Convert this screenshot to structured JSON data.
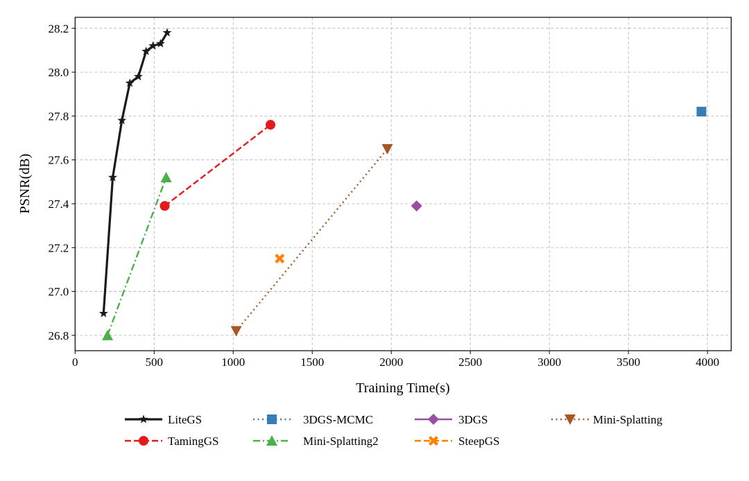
{
  "chart_data": {
    "type": "line",
    "title": "",
    "xlabel": "Training Time(s)",
    "ylabel": "PSNR(dB)",
    "xlim": [
      0,
      4150
    ],
    "ylim": [
      26.73,
      28.25
    ],
    "xticks": [
      0,
      500,
      1000,
      1500,
      2000,
      2500,
      3000,
      3500,
      4000
    ],
    "yticks": [
      26.8,
      27.0,
      27.2,
      27.4,
      27.6,
      27.8,
      28.0,
      28.2
    ],
    "grid": true,
    "legend_position": "bottom",
    "series": [
      {
        "name": "LiteGS",
        "color": "#1a1a1a",
        "line": "solid",
        "marker": "star",
        "x": [
          180,
          238,
          296,
          346,
          400,
          449,
          493,
          540,
          582
        ],
        "y": [
          26.9,
          27.52,
          27.78,
          27.95,
          27.98,
          28.095,
          28.12,
          28.13,
          28.18
        ]
      },
      {
        "name": "TamingGS",
        "color": "#e41a1c",
        "line": "dashed",
        "marker": "circle",
        "x": [
          567,
          1236
        ],
        "y": [
          27.39,
          27.76
        ]
      },
      {
        "name": "3DGS-MCMC",
        "color": "#377eb8",
        "line": "dotted",
        "marker": "square",
        "x": [
          3962
        ],
        "y": [
          27.82
        ]
      },
      {
        "name": "Mini-Splatting2",
        "color": "#4daf4a",
        "line": "dashdot",
        "marker": "triangle-up",
        "x": [
          205,
          576
        ],
        "y": [
          26.8,
          27.52
        ]
      },
      {
        "name": "3DGS",
        "color": "#984ea3",
        "line": "solid",
        "marker": "diamond",
        "x": [
          2160
        ],
        "y": [
          27.39
        ]
      },
      {
        "name": "SteepGS",
        "color": "#ff7f00",
        "line": "dashed",
        "marker": "x-filled",
        "x": [
          1294
        ],
        "y": [
          27.15
        ]
      },
      {
        "name": "Mini-Splatting",
        "color": "#a65628",
        "line": "dotted",
        "marker": "triangle-down",
        "x": [
          1019,
          1975
        ],
        "y": [
          26.82,
          27.65
        ]
      }
    ]
  }
}
